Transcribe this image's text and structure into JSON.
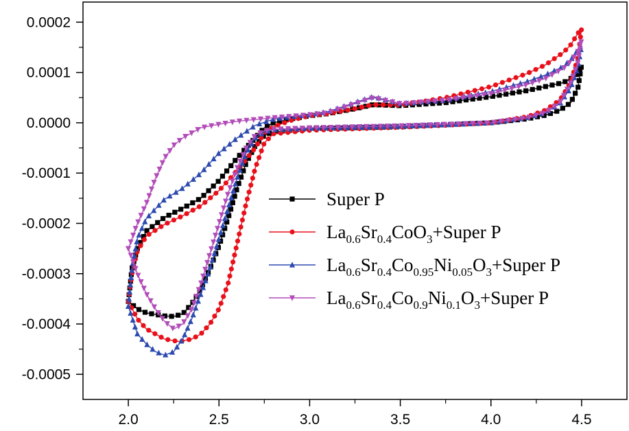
{
  "chart_data": {
    "type": "line",
    "title": "",
    "xlabel": "",
    "ylabel": "",
    "xlim": [
      1.75,
      4.75
    ],
    "ylim": [
      -0.00055,
      0.00024
    ],
    "x_ticks": [
      2.0,
      2.5,
      3.0,
      3.5,
      4.0,
      4.5
    ],
    "x_tick_labels": [
      "2.0",
      "2.5",
      "3.0",
      "3.5",
      "4.0",
      "4.5"
    ],
    "y_ticks": [
      0.0002,
      0.0001,
      0.0,
      -0.0001,
      -0.0002,
      -0.0003,
      -0.0004,
      -0.0005
    ],
    "y_tick_labels": [
      "0.0002",
      "0.0001",
      "0.0000",
      "-0.0001",
      "-0.0002",
      "-0.0003",
      "-0.0004",
      "-0.0005"
    ],
    "grid": false,
    "legend_position": "center-right",
    "series": [
      {
        "name": "Super P",
        "legend_parts": [
          [
            "Super P",
            false
          ]
        ],
        "color": "#000000",
        "marker": "square",
        "points": [
          [
            2.0,
            -0.000355
          ],
          [
            2.05,
            -0.00037
          ],
          [
            2.1,
            -0.000378
          ],
          [
            2.2,
            -0.000384
          ],
          [
            2.25,
            -0.000385
          ],
          [
            2.3,
            -0.00038
          ],
          [
            2.35,
            -0.00036
          ],
          [
            2.4,
            -0.00033
          ],
          [
            2.45,
            -0.00029
          ],
          [
            2.5,
            -0.000245
          ],
          [
            2.55,
            -0.00019
          ],
          [
            2.6,
            -0.00013
          ],
          [
            2.65,
            -8e-05
          ],
          [
            2.7,
            -4.5e-05
          ],
          [
            2.75,
            -2.5e-05
          ],
          [
            2.8,
            -1.8e-05
          ],
          [
            3.0,
            -1.2e-05
          ],
          [
            3.25,
            -1e-05
          ],
          [
            3.5,
            -8e-06
          ],
          [
            3.75,
            -4e-06
          ],
          [
            4.0,
            0.0
          ],
          [
            4.2,
            8e-06
          ],
          [
            4.3,
            1.5e-05
          ],
          [
            4.38,
            2.5e-05
          ],
          [
            4.44,
            4e-05
          ],
          [
            4.48,
            7e-05
          ],
          [
            4.5,
            0.000115
          ],
          [
            4.48,
            9.8e-05
          ],
          [
            4.44,
            8.8e-05
          ],
          [
            4.4,
            8e-05
          ],
          [
            4.3,
            7.2e-05
          ],
          [
            4.2,
            6.4e-05
          ],
          [
            4.0,
            5.2e-05
          ],
          [
            3.75,
            4e-05
          ],
          [
            3.5,
            3.4e-05
          ],
          [
            3.35,
            3.6e-05
          ],
          [
            3.25,
            2.8e-05
          ],
          [
            3.1,
            1.8e-05
          ],
          [
            3.0,
            1.4e-05
          ],
          [
            2.9,
            8e-06
          ],
          [
            2.8,
            0.0
          ],
          [
            2.75,
            -1e-05
          ],
          [
            2.7,
            -3e-05
          ],
          [
            2.6,
            -7e-05
          ],
          [
            2.5,
            -0.000115
          ],
          [
            2.4,
            -0.00015
          ],
          [
            2.3,
            -0.00017
          ],
          [
            2.2,
            -0.000188
          ],
          [
            2.1,
            -0.000215
          ],
          [
            2.05,
            -0.00025
          ],
          [
            2.02,
            -0.00029
          ],
          [
            2.0,
            -0.000355
          ]
        ]
      },
      {
        "name": "La0.6Sr0.4CoO3+Super P",
        "legend_parts": [
          [
            "La",
            false
          ],
          [
            "0.6",
            true
          ],
          [
            "Sr",
            false
          ],
          [
            "0.4",
            true
          ],
          [
            "CoO",
            false
          ],
          [
            "3",
            true
          ],
          [
            "+Super P",
            false
          ]
        ],
        "color": "#e8101a",
        "marker": "circle",
        "points": [
          [
            2.0,
            -0.000355
          ],
          [
            2.05,
            -0.00039
          ],
          [
            2.1,
            -0.00041
          ],
          [
            2.2,
            -0.00043
          ],
          [
            2.28,
            -0.000435
          ],
          [
            2.35,
            -0.00043
          ],
          [
            2.4,
            -0.00042
          ],
          [
            2.45,
            -0.0004
          ],
          [
            2.5,
            -0.00037
          ],
          [
            2.55,
            -0.00032
          ],
          [
            2.6,
            -0.00024
          ],
          [
            2.65,
            -0.00016
          ],
          [
            2.7,
            -9e-05
          ],
          [
            2.75,
            -4e-05
          ],
          [
            2.8,
            -2.2e-05
          ],
          [
            3.0,
            -1.5e-05
          ],
          [
            3.25,
            -1.2e-05
          ],
          [
            3.5,
            -9e-06
          ],
          [
            3.75,
            -5e-06
          ],
          [
            4.0,
            0.0
          ],
          [
            4.2,
            1.2e-05
          ],
          [
            4.3,
            2.5e-05
          ],
          [
            4.38,
            4.5e-05
          ],
          [
            4.44,
            8e-05
          ],
          [
            4.48,
            0.00013
          ],
          [
            4.5,
            0.000188
          ],
          [
            4.48,
            0.000178
          ],
          [
            4.44,
            0.000155
          ],
          [
            4.4,
            0.00014
          ],
          [
            4.3,
            0.000115
          ],
          [
            4.2,
            9.8e-05
          ],
          [
            4.0,
            7.2e-05
          ],
          [
            3.75,
            5e-05
          ],
          [
            3.5,
            3.5e-05
          ],
          [
            3.35,
            3.6e-05
          ],
          [
            3.25,
            2.8e-05
          ],
          [
            3.1,
            1.8e-05
          ],
          [
            3.0,
            1.4e-05
          ],
          [
            2.9,
            5e-06
          ],
          [
            2.8,
            -8e-06
          ],
          [
            2.75,
            -2e-05
          ],
          [
            2.7,
            -5e-05
          ],
          [
            2.6,
            -9.5e-05
          ],
          [
            2.5,
            -0.000135
          ],
          [
            2.4,
            -0.000165
          ],
          [
            2.3,
            -0.000185
          ],
          [
            2.2,
            -0.000202
          ],
          [
            2.1,
            -0.000225
          ],
          [
            2.05,
            -0.000255
          ],
          [
            2.02,
            -0.0003
          ],
          [
            2.0,
            -0.000355
          ]
        ]
      },
      {
        "name": "La0.6Sr0.4Co0.95Ni0.05O3+Super P",
        "legend_parts": [
          [
            "La",
            false
          ],
          [
            "0.6",
            true
          ],
          [
            "Sr",
            false
          ],
          [
            "0.4",
            true
          ],
          [
            "Co",
            false
          ],
          [
            "0.95",
            true
          ],
          [
            "Ni",
            false
          ],
          [
            "0.05",
            true
          ],
          [
            "O",
            false
          ],
          [
            "3",
            true
          ],
          [
            "+Super P",
            false
          ]
        ],
        "color": "#2d4ab0",
        "marker": "triangle-up",
        "points": [
          [
            2.0,
            -0.000365
          ],
          [
            2.05,
            -0.00042
          ],
          [
            2.1,
            -0.00044
          ],
          [
            2.15,
            -0.000455
          ],
          [
            2.2,
            -0.000462
          ],
          [
            2.25,
            -0.000455
          ],
          [
            2.3,
            -0.00043
          ],
          [
            2.35,
            -0.00039
          ],
          [
            2.4,
            -0.00034
          ],
          [
            2.45,
            -0.00029
          ],
          [
            2.5,
            -0.00023
          ],
          [
            2.55,
            -0.00017
          ],
          [
            2.6,
            -0.00011
          ],
          [
            2.65,
            -6e-05
          ],
          [
            2.7,
            -3e-05
          ],
          [
            2.75,
            -1.8e-05
          ],
          [
            2.8,
            -1.4e-05
          ],
          [
            3.0,
            -1.1e-05
          ],
          [
            3.25,
            -9e-06
          ],
          [
            3.5,
            -7e-06
          ],
          [
            3.75,
            -4e-06
          ],
          [
            4.0,
            0.0
          ],
          [
            4.2,
            1e-05
          ],
          [
            4.3,
            2e-05
          ],
          [
            4.38,
            3.8e-05
          ],
          [
            4.44,
            7e-05
          ],
          [
            4.48,
            0.00011
          ],
          [
            4.5,
            0.000155
          ],
          [
            4.48,
            0.000145
          ],
          [
            4.44,
            0.000125
          ],
          [
            4.4,
            0.000112
          ],
          [
            4.3,
            9.5e-05
          ],
          [
            4.2,
            8.2e-05
          ],
          [
            4.0,
            6.2e-05
          ],
          [
            3.75,
            4.5e-05
          ],
          [
            3.5,
            3.8e-05
          ],
          [
            3.35,
            5.2e-05
          ],
          [
            3.25,
            4e-05
          ],
          [
            3.1,
            2.2e-05
          ],
          [
            3.0,
            1.6e-05
          ],
          [
            2.9,
            1.2e-05
          ],
          [
            2.8,
            7e-06
          ],
          [
            2.7,
            -5e-06
          ],
          [
            2.6,
            -3e-05
          ],
          [
            2.5,
            -6e-05
          ],
          [
            2.4,
            -0.0001
          ],
          [
            2.3,
            -0.00013
          ],
          [
            2.2,
            -0.000152
          ],
          [
            2.1,
            -0.00019
          ],
          [
            2.05,
            -0.00023
          ],
          [
            2.02,
            -0.00029
          ],
          [
            2.0,
            -0.000365
          ]
        ]
      },
      {
        "name": "La0.6Sr0.4Co0.9Ni0.1O3+Super P",
        "legend_parts": [
          [
            "La",
            false
          ],
          [
            "0.6",
            true
          ],
          [
            "Sr",
            false
          ],
          [
            "0.4",
            true
          ],
          [
            "Co",
            false
          ],
          [
            "0.9",
            true
          ],
          [
            "Ni",
            false
          ],
          [
            "0.1",
            true
          ],
          [
            "O",
            false
          ],
          [
            "3",
            true
          ],
          [
            "+Super P",
            false
          ]
        ],
        "color": "#b24cb8",
        "marker": "triangle-down",
        "points": [
          [
            2.0,
            -0.00025
          ],
          [
            2.05,
            -0.0003
          ],
          [
            2.1,
            -0.00034
          ],
          [
            2.15,
            -0.00037
          ],
          [
            2.2,
            -0.000395
          ],
          [
            2.25,
            -0.00041
          ],
          [
            2.3,
            -0.0004
          ],
          [
            2.35,
            -0.00037
          ],
          [
            2.4,
            -0.00032
          ],
          [
            2.45,
            -0.00026
          ],
          [
            2.5,
            -0.0002
          ],
          [
            2.55,
            -0.00014
          ],
          [
            2.6,
            -9e-05
          ],
          [
            2.65,
            -5e-05
          ],
          [
            2.7,
            -2.5e-05
          ],
          [
            2.75,
            -1.6e-05
          ],
          [
            2.8,
            -1.3e-05
          ],
          [
            3.0,
            -1e-05
          ],
          [
            3.25,
            -8e-06
          ],
          [
            3.5,
            -6e-06
          ],
          [
            3.75,
            -3e-06
          ],
          [
            4.0,
            0.0
          ],
          [
            4.2,
            1e-05
          ],
          [
            4.3,
            2e-05
          ],
          [
            4.38,
            4e-05
          ],
          [
            4.44,
            8e-05
          ],
          [
            4.48,
            0.00012
          ],
          [
            4.5,
            0.000165
          ],
          [
            4.48,
            0.000142
          ],
          [
            4.44,
            0.000122
          ],
          [
            4.4,
            0.000108
          ],
          [
            4.3,
            8.8e-05
          ],
          [
            4.2,
            7.6e-05
          ],
          [
            4.0,
            5.8e-05
          ],
          [
            3.75,
            4.5e-05
          ],
          [
            3.5,
            3.8e-05
          ],
          [
            3.35,
            5e-05
          ],
          [
            3.25,
            3.8e-05
          ],
          [
            3.1,
            2e-05
          ],
          [
            3.0,
            1.6e-05
          ],
          [
            2.9,
            1.3e-05
          ],
          [
            2.8,
            1e-05
          ],
          [
            2.6,
            3e-06
          ],
          [
            2.5,
            -3e-06
          ],
          [
            2.4,
            -1e-05
          ],
          [
            2.35,
            -2e-05
          ],
          [
            2.3,
            -3e-05
          ],
          [
            2.25,
            -4.5e-05
          ],
          [
            2.2,
            -7e-05
          ],
          [
            2.15,
            -0.00011
          ],
          [
            2.1,
            -0.00016
          ],
          [
            2.05,
            -0.0002
          ],
          [
            2.02,
            -0.00023
          ],
          [
            2.0,
            -0.00025
          ]
        ]
      }
    ]
  }
}
